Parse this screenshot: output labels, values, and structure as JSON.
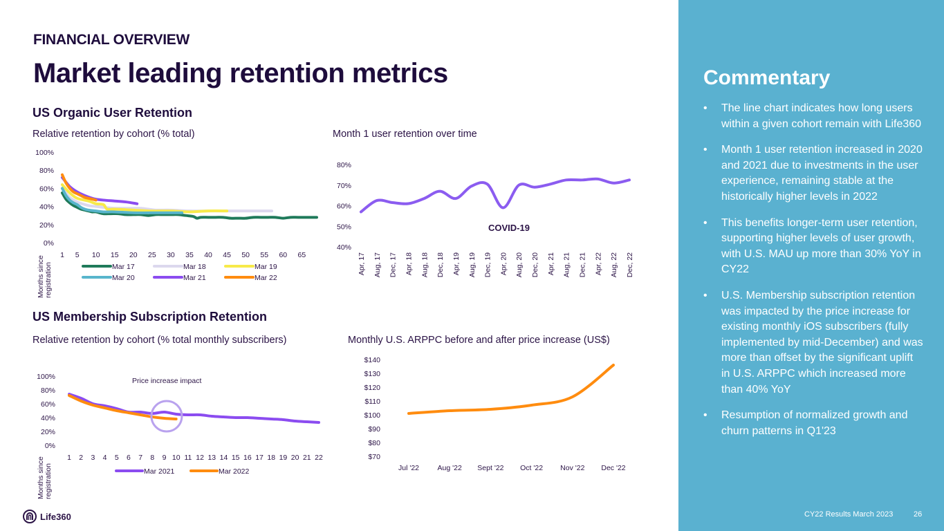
{
  "header": {
    "kicker": "FINANCIAL OVERVIEW",
    "title": "Market leading retention metrics"
  },
  "sections": {
    "organic": "US Organic User Retention",
    "membership": "US Membership Subscription Retention"
  },
  "commentary": {
    "title": "Commentary",
    "bullet_glyph": "•",
    "bullets": [
      "The line chart indicates how long users within a given cohort remain with Life360",
      "Month 1 user retention increased in 2020 and 2021 due to investments in the user experience, remaining stable at the historically higher levels in 2022",
      "This benefits longer-term user retention, supporting higher levels of user growth, with U.S. MAU up more than 30% YoY in CY22",
      "U.S. Membership subscription retention was impacted by the price increase for existing monthly iOS subscribers (fully implemented by mid-December) and was more than offset by the significant uplift in U.S. ARPPC which increased more than 40% YoY",
      "Resumption of normalized growth and churn patterns in Q1'23"
    ]
  },
  "footer": {
    "note": "CY22 Results March 2023",
    "page": "26",
    "logo_text": "Life360"
  },
  "chart_data": [
    {
      "id": "cohort_retention",
      "type": "line",
      "title": "Relative retention by cohort (% total)",
      "xlabel": "Months since registration",
      "ylabel": "",
      "ylim": [
        0,
        100
      ],
      "xlim": [
        1,
        69
      ],
      "y_ticks": [
        "0%",
        "20%",
        "40%",
        "60%",
        "80%",
        "100%"
      ],
      "x_ticks": [
        "1",
        "5",
        "10",
        "15",
        "20",
        "25",
        "30",
        "35",
        "40",
        "45",
        "50",
        "55",
        "60",
        "65"
      ],
      "legend": "bottom",
      "grid": false,
      "series": [
        {
          "name": "Mar 17",
          "color": "#1f7a5a",
          "x": [
            1,
            2,
            3,
            4,
            5,
            6,
            7,
            8,
            9,
            10,
            12,
            14,
            16,
            18,
            20,
            22,
            24,
            26,
            28,
            30,
            32,
            34,
            36,
            37,
            38,
            40,
            42,
            44,
            46,
            48,
            50,
            52,
            54,
            56,
            58,
            60,
            62,
            64,
            66,
            68,
            69
          ],
          "values": [
            55,
            48,
            44,
            41,
            39,
            37,
            36,
            35,
            34,
            34,
            32,
            32,
            32,
            31,
            31,
            31,
            30,
            31,
            31,
            31,
            31,
            30,
            29,
            27,
            28,
            28,
            28,
            28,
            27,
            27,
            27,
            28,
            28,
            28,
            28,
            27,
            28,
            28,
            28,
            28,
            28
          ]
        },
        {
          "name": "Mar 18",
          "color": "#dcd8ee",
          "x": [
            1,
            3,
            5,
            8,
            10,
            12,
            15,
            18,
            20,
            22,
            24,
            26,
            30,
            35,
            40,
            45,
            50,
            55,
            57
          ],
          "values": [
            60,
            50,
            45,
            41,
            40,
            39,
            38,
            38,
            38,
            38,
            37,
            36,
            36,
            35,
            35,
            35,
            35,
            35,
            35
          ]
        },
        {
          "name": "Mar 19",
          "color": "#f7ea4a",
          "x": [
            1,
            3,
            5,
            8,
            10,
            12,
            13,
            15,
            20,
            25,
            30,
            35,
            40,
            45
          ],
          "values": [
            64,
            55,
            49,
            46,
            43,
            42,
            37,
            37,
            36,
            35,
            35,
            34,
            35,
            35
          ]
        },
        {
          "name": "Mar 20",
          "color": "#58b5cc",
          "x": [
            1,
            2,
            3,
            4,
            5,
            6,
            7,
            8,
            10,
            12,
            15,
            20,
            25,
            30,
            33
          ],
          "values": [
            60,
            52,
            47,
            44,
            42,
            39,
            37,
            36,
            35,
            34,
            34,
            33,
            33,
            33,
            33
          ]
        },
        {
          "name": "Mar 21",
          "color": "#8b4cf0",
          "x": [
            1,
            3,
            5,
            7,
            9,
            10,
            12,
            15,
            18,
            21
          ],
          "values": [
            72,
            62,
            56,
            52,
            49,
            48,
            47,
            46,
            45,
            43
          ]
        },
        {
          "name": "Mar 22",
          "color": "#ff8c0f",
          "x": [
            1,
            2,
            3,
            4,
            5,
            6,
            7,
            8,
            9,
            10
          ],
          "values": [
            75,
            66,
            60,
            56,
            54,
            52,
            50,
            49,
            48,
            47
          ]
        }
      ]
    },
    {
      "id": "month1_retention",
      "type": "line",
      "title": "Month 1 user retention over time",
      "xlabel": "",
      "ylabel": "",
      "ylim": [
        40,
        80
      ],
      "y_ticks": [
        "40%",
        "50%",
        "60%",
        "70%",
        "80%"
      ],
      "categories": [
        "Apr, 17",
        "Aug, 17",
        "Dec, 17",
        "Apr, 18",
        "Aug, 18",
        "Dec, 18",
        "Apr, 19",
        "Aug, 19",
        "Dec, 19",
        "Apr, 20",
        "Aug, 20",
        "Dec, 20",
        "Apr, 21",
        "Aug, 21",
        "Dec, 21",
        "Apr, 22",
        "Aug, 22",
        "Dec, 22"
      ],
      "annotation": "COVID-19",
      "legend": "none",
      "grid": false,
      "series": [
        {
          "name": "Month 1 retention",
          "color": "#8b5cf0",
          "values": [
            57,
            62.5,
            61.5,
            61,
            63.5,
            67,
            63.5,
            69.5,
            70.5,
            59,
            70,
            69,
            70.5,
            72.5,
            72.5,
            73,
            71,
            72.5
          ]
        }
      ]
    },
    {
      "id": "subscription_retention",
      "type": "line",
      "title": "Relative retention by cohort (% total monthly subscribers)",
      "xlabel": "Months since registration",
      "ylabel": "",
      "ylim": [
        0,
        100
      ],
      "y_ticks": [
        "0%",
        "20%",
        "40%",
        "60%",
        "80%",
        "100%"
      ],
      "categories": [
        "1",
        "2",
        "3",
        "4",
        "5",
        "6",
        "7",
        "8",
        "9",
        "10",
        "11",
        "12",
        "13",
        "14",
        "15",
        "16",
        "17",
        "18",
        "19",
        "20",
        "21",
        "22"
      ],
      "annotation": "Price increase impact",
      "legend": "bottom",
      "grid": false,
      "series": [
        {
          "name": "Mar 2021",
          "color": "#8b4cf0",
          "values": [
            74,
            68,
            60,
            57,
            53,
            48,
            48,
            46,
            48,
            45,
            44,
            44,
            42,
            41,
            40,
            40,
            39,
            38,
            37,
            35,
            34,
            33
          ]
        },
        {
          "name": "Mar 2022",
          "color": "#ff8c0f",
          "values": [
            72,
            64,
            58,
            54,
            50,
            47,
            44,
            41,
            39,
            38
          ]
        }
      ]
    },
    {
      "id": "arppc",
      "type": "line",
      "title": "Monthly U.S. ARPPC before and after price increase (US$)",
      "xlabel": "",
      "ylabel": "",
      "ylim": [
        70,
        140
      ],
      "y_ticks": [
        "$70",
        "$80",
        "$90",
        "$100",
        "$110",
        "$120",
        "$130",
        "$140"
      ],
      "categories": [
        "Jul '22",
        "Aug '22",
        "Sept '22",
        "Oct '22",
        "Nov '22",
        "Dec '22"
      ],
      "legend": "none",
      "grid": false,
      "series": [
        {
          "name": "ARPPC",
          "color": "#ff8c0f",
          "values": [
            101,
            103,
            104,
            107,
            113,
            136
          ]
        }
      ]
    }
  ]
}
